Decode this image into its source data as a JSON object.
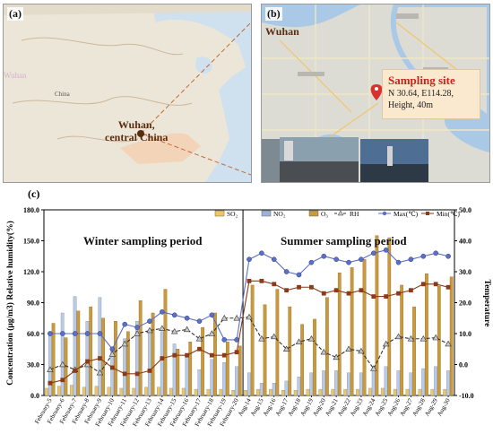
{
  "panels": {
    "a": {
      "label": "(a)",
      "city_label_line1": "Wuhan,",
      "city_label_line2": "central China",
      "map_labels": [
        "China",
        "Wuhan"
      ]
    },
    "b": {
      "label": "(b)",
      "city": "Wuhan",
      "site_title": "Sampling site",
      "site_coords": "N 30.64, E114.28,",
      "site_height": "Height, 40m",
      "colors": {
        "callout_bg": "#fbe9cf",
        "pin": "#d8322e",
        "water": "#9fc3e6"
      }
    },
    "c": {
      "label": "(c)",
      "winter_label": "Winter sampling period",
      "summer_label": "Summer sampling period"
    }
  },
  "chart_data": {
    "type": "bar",
    "title": "",
    "ylabel_left": "Concentration (μg/m3)  Relative humidity(%)",
    "ylabel_right": "Temperature",
    "y_left_ticks": [
      "0.0",
      "30.0",
      "60.0",
      "90.0",
      "120.0",
      "150.0",
      "180.0"
    ],
    "y_right_ticks": [
      "-10.0",
      "0.0",
      "10.0",
      "20.0",
      "30.0",
      "40.0",
      "50.0"
    ],
    "ylim_left": [
      0,
      180
    ],
    "ylim_right": [
      -10,
      50
    ],
    "categories": [
      "February-5",
      "February-6",
      "February-7",
      "February-8",
      "February-9",
      "February-10",
      "February-11",
      "February-12",
      "February-13",
      "February-14",
      "February-15",
      "February-16",
      "February-17",
      "February-18",
      "February-19",
      "February-20",
      "Aug-14",
      "Aug-15",
      "Aug-16",
      "Aug-17",
      "Aug-18",
      "Aug-19",
      "Aug-20",
      "Aug-21",
      "Aug-22",
      "Aug-23",
      "Aug-24",
      "Aug-25",
      "Aug-26",
      "Aug-27",
      "Aug-28",
      "Aug-29",
      "Aug-30"
    ],
    "series": [
      {
        "name": "SO₂",
        "type": "bar",
        "axis": "left",
        "color": "#f0c75e",
        "values": [
          7,
          9,
          10,
          8,
          9,
          8,
          7,
          7,
          8,
          8,
          7,
          7,
          6,
          6,
          6,
          5,
          5,
          6,
          6,
          5,
          5,
          6,
          6,
          6,
          6,
          6,
          7,
          7,
          6,
          6,
          6,
          6,
          6
        ]
      },
      {
        "name": "NO₂",
        "type": "bar",
        "axis": "left",
        "color": "#9ab3da",
        "values": [
          62,
          80,
          96,
          72,
          95,
          45,
          55,
          72,
          63,
          62,
          50,
          38,
          25,
          35,
          32,
          28,
          22,
          12,
          12,
          14,
          18,
          22,
          24,
          24,
          22,
          22,
          25,
          28,
          24,
          22,
          26,
          28,
          24
        ]
      },
      {
        "name": "O₃",
        "type": "bar",
        "axis": "left",
        "color": "#c89a3d",
        "values": [
          70,
          56,
          82,
          86,
          75,
          72,
          62,
          92,
          80,
          103,
          45,
          52,
          66,
          80,
          52,
          48,
          107,
          88,
          103,
          86,
          69,
          74,
          95,
          119,
          124,
          132,
          155,
          153,
          107,
          86,
          118,
          106,
          115
        ]
      },
      {
        "name": "RH",
        "type": "line",
        "axis": "left",
        "color": "#333333",
        "values": [
          25,
          30,
          25,
          30,
          22,
          40,
          50,
          60,
          63,
          65,
          62,
          64,
          55,
          60,
          75,
          75,
          76,
          55,
          57,
          45,
          52,
          55,
          42,
          37,
          45,
          43,
          26,
          50,
          57,
          55,
          55,
          56,
          50
        ]
      },
      {
        "name": "Max(℃)",
        "type": "line",
        "axis": "right",
        "color": "#5b6fc4",
        "values": [
          10,
          10,
          10,
          10,
          10,
          5,
          13,
          12,
          14,
          17,
          16,
          15,
          14,
          16,
          8,
          8,
          34,
          36,
          34,
          30,
          29,
          33,
          35,
          34,
          33,
          34,
          36,
          37,
          33,
          34,
          35,
          36,
          35
        ]
      },
      {
        "name": "Min(℃)",
        "type": "line",
        "axis": "right",
        "color": "#8b3a1a",
        "values": [
          -6,
          -5,
          -2,
          1,
          2,
          -1,
          -3,
          -3,
          -2,
          2,
          3,
          3,
          5,
          3,
          3,
          4,
          27,
          27,
          26,
          24,
          25,
          25,
          23,
          24,
          23,
          24,
          22,
          22,
          23,
          24,
          26,
          26,
          25
        ]
      }
    ],
    "legend_position": "top-right",
    "grid": false
  }
}
